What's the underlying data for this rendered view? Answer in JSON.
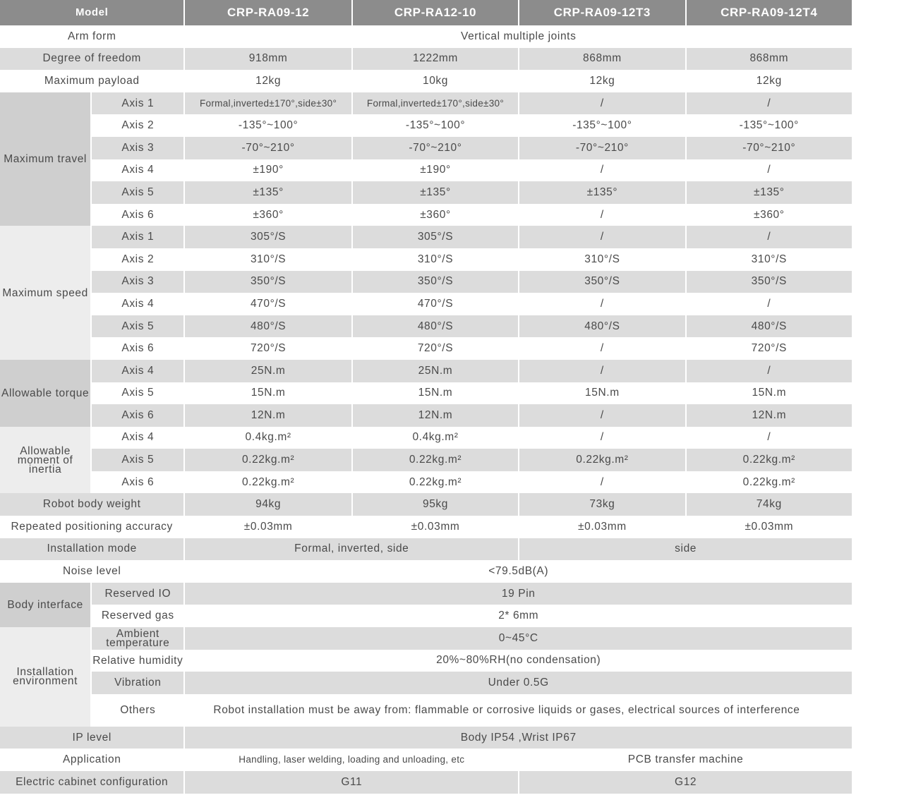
{
  "header": {
    "label": "Model",
    "models": [
      "CRP-RA09-12",
      "CRP-RA12-10",
      "CRP-RA09-12T3",
      "CRP-RA09-12T4"
    ]
  },
  "colors": {
    "header_bg": "#8c8c8c",
    "row_grey": "#dcdcdc",
    "text": "#4a4a4a"
  },
  "sections": [
    {
      "label": "Arm form",
      "all": "Vertical multiple joints"
    },
    {
      "label": "Degree of freedom",
      "values": [
        "918mm",
        "1222mm",
        "868mm",
        "868mm"
      ]
    },
    {
      "label": "Maximum payload",
      "values": [
        "12kg",
        "10kg",
        "12kg",
        "12kg"
      ]
    },
    {
      "group": "Maximum travel",
      "rows": [
        {
          "label": "Axis 1",
          "values": [
            "Formal,inverted±170°,side±30°",
            "Formal,inverted±170°,side±30°",
            "/",
            "/"
          ]
        },
        {
          "label": "Axis 2",
          "values": [
            "-135°~100°",
            "-135°~100°",
            "-135°~100°",
            "-135°~100°"
          ]
        },
        {
          "label": "Axis 3",
          "values": [
            "-70°~210°",
            "-70°~210°",
            "-70°~210°",
            "-70°~210°"
          ]
        },
        {
          "label": "Axis 4",
          "values": [
            "±190°",
            "±190°",
            "/",
            "/"
          ]
        },
        {
          "label": "Axis 5",
          "values": [
            "±135°",
            "±135°",
            "±135°",
            "±135°"
          ]
        },
        {
          "label": "Axis 6",
          "values": [
            "±360°",
            "±360°",
            "/",
            "±360°"
          ]
        }
      ]
    },
    {
      "group": "Maximum speed",
      "rows": [
        {
          "label": "Axis 1",
          "values": [
            "305°/S",
            "305°/S",
            "/",
            "/"
          ]
        },
        {
          "label": "Axis 2",
          "values": [
            "310°/S",
            "310°/S",
            "310°/S",
            "310°/S"
          ]
        },
        {
          "label": "Axis 3",
          "values": [
            "350°/S",
            "350°/S",
            "350°/S",
            "350°/S"
          ]
        },
        {
          "label": "Axis 4",
          "values": [
            "470°/S",
            "470°/S",
            "/",
            "/"
          ]
        },
        {
          "label": "Axis 5",
          "values": [
            "480°/S",
            "480°/S",
            "480°/S",
            "480°/S"
          ]
        },
        {
          "label": "Axis 6",
          "values": [
            "720°/S",
            "720°/S",
            "/",
            "720°/S"
          ]
        }
      ]
    },
    {
      "group": "Allowable torque",
      "rows": [
        {
          "label": "Axis 4",
          "values": [
            "25N.m",
            "25N.m",
            "/",
            "/"
          ]
        },
        {
          "label": "Axis 5",
          "values": [
            "15N.m",
            "15N.m",
            "15N.m",
            "15N.m"
          ]
        },
        {
          "label": "Axis 6",
          "values": [
            "12N.m",
            "12N.m",
            "/",
            "12N.m"
          ]
        }
      ]
    },
    {
      "group": "Allowable moment of inertia",
      "rows": [
        {
          "label": "Axis 4",
          "values": [
            "0.4kg.m²",
            "0.4kg.m²",
            "/",
            "/"
          ]
        },
        {
          "label": "Axis 5",
          "values": [
            "0.22kg.m²",
            "0.22kg.m²",
            "0.22kg.m²",
            "0.22kg.m²"
          ]
        },
        {
          "label": "Axis 6",
          "values": [
            "0.22kg.m²",
            "0.22kg.m²",
            "/",
            "0.22kg.m²"
          ]
        }
      ]
    },
    {
      "label": "Robot body weight",
      "values": [
        "94kg",
        "95kg",
        "73kg",
        "74kg"
      ]
    },
    {
      "label": "Repeated positioning accuracy",
      "values": [
        "±0.03mm",
        "±0.03mm",
        "±0.03mm",
        "±0.03mm"
      ]
    },
    {
      "label": "Installation mode",
      "pair": [
        "Formal, inverted, side",
        "side"
      ]
    },
    {
      "label": "Noise level",
      "all": "<79.5dB(A)"
    },
    {
      "group": "Body interface",
      "rows": [
        {
          "label": "Reserved IO",
          "all": "19 Pin"
        },
        {
          "label": "Reserved gas",
          "all": "2* 6mm"
        }
      ]
    },
    {
      "group": "Installation environment",
      "rows": [
        {
          "label": "Ambient temperature",
          "all": "0~45°C"
        },
        {
          "label": "Relative humidity",
          "all": "20%~80%RH(no condensation)"
        },
        {
          "label": "Vibration",
          "all": "Under 0.5G"
        },
        {
          "label": "Others",
          "all": "Robot installation must be away from: flammable or corrosive liquids or gases, electrical sources of interference"
        }
      ]
    },
    {
      "label": "IP level",
      "all": "Body IP54 ,Wrist IP67"
    },
    {
      "label": "Application",
      "pair": [
        "Handling, laser welding, loading and unloading, etc",
        "PCB transfer machine"
      ]
    },
    {
      "label": "Electric cabinet configuration",
      "pair": [
        "G11",
        "G12"
      ]
    }
  ]
}
